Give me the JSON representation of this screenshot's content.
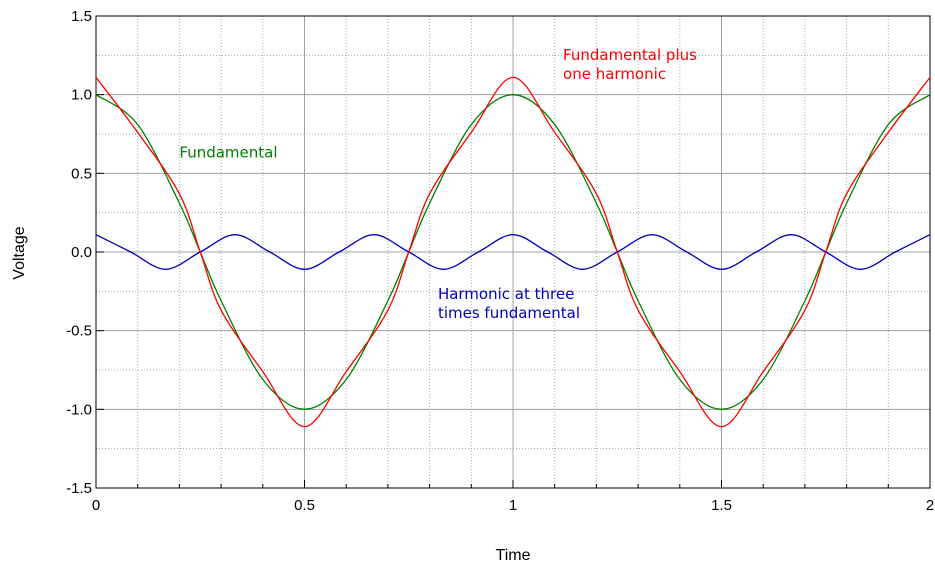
{
  "chart_data": {
    "type": "line",
    "title": "",
    "xlabel": "Time",
    "ylabel": "Voltage",
    "xlim": [
      0,
      2
    ],
    "ylim": [
      -1.5,
      1.5
    ],
    "grid": true,
    "x_ticks": [
      {
        "value": 0,
        "label": "0"
      },
      {
        "value": 0.5,
        "label": "0.5"
      },
      {
        "value": 1,
        "label": "1"
      },
      {
        "value": 1.5,
        "label": "1.5"
      },
      {
        "value": 2,
        "label": "2"
      }
    ],
    "y_ticks": [
      {
        "value": 1.5,
        "label": "1.5"
      },
      {
        "value": 1.0,
        "label": "1.0"
      },
      {
        "value": 0.5,
        "label": "0.5"
      },
      {
        "value": 0.0,
        "label": "0.0"
      },
      {
        "value": -0.5,
        "label": "-0.5"
      },
      {
        "value": -1.0,
        "label": "-1.0"
      },
      {
        "value": -1.5,
        "label": "-1.5"
      }
    ],
    "series": [
      {
        "color": "#008000",
        "x": [
          0,
          0.1,
          0.2,
          0.25,
          0.3,
          0.4,
          0.5,
          0.6,
          0.7,
          0.75,
          0.8,
          0.9,
          1.0,
          1.1,
          1.2,
          1.25,
          1.3,
          1.4,
          1.5,
          1.6,
          1.7,
          1.75,
          1.8,
          1.9,
          2.0
        ],
        "y": [
          1.0,
          0.81,
          0.31,
          0.0,
          -0.31,
          -0.81,
          -1.0,
          -0.81,
          -0.31,
          0.0,
          0.31,
          0.81,
          1.0,
          0.81,
          0.31,
          0.0,
          -0.31,
          -0.81,
          -1.0,
          -0.81,
          -0.31,
          0.0,
          0.31,
          0.81,
          1.0
        ]
      },
      {
        "color": "#0000c0",
        "x": [
          0,
          0.0833,
          0.1667,
          0.25,
          0.3333,
          0.4167,
          0.5,
          0.5833,
          0.6667,
          0.75,
          0.8333,
          0.9167,
          1.0,
          1.0833,
          1.1667,
          1.25,
          1.3333,
          1.4167,
          1.5,
          1.5833,
          1.6667,
          1.75,
          1.8333,
          1.9167,
          2.0
        ],
        "y": [
          0.11,
          0.0,
          -0.11,
          0.0,
          0.11,
          0.0,
          -0.11,
          0.0,
          0.11,
          0.0,
          -0.11,
          0.0,
          0.11,
          0.0,
          -0.11,
          0.0,
          0.11,
          0.0,
          -0.11,
          0.0,
          0.11,
          0.0,
          -0.11,
          0.0,
          0.11
        ]
      },
      {
        "color": "#ff0000",
        "x": [
          0,
          0.1,
          0.2,
          0.25,
          0.3,
          0.4,
          0.5,
          0.6,
          0.7,
          0.75,
          0.8,
          0.9,
          1.0,
          1.1,
          1.2,
          1.25,
          1.3,
          1.4,
          1.5,
          1.6,
          1.7,
          1.75,
          1.8,
          1.9,
          2.0
        ],
        "y": [
          1.11,
          0.76,
          0.37,
          0.0,
          -0.37,
          -0.76,
          -1.11,
          -0.76,
          -0.37,
          0.0,
          0.37,
          0.76,
          1.11,
          0.76,
          0.37,
          0.0,
          -0.37,
          -0.76,
          -1.11,
          -0.76,
          -0.37,
          0.0,
          0.37,
          0.76,
          1.11
        ]
      }
    ],
    "annotations": [
      {
        "lines": [
          "Fundamental plus",
          "one harmonic"
        ],
        "color": "#ff0000",
        "x": 1.12,
        "y": 1.22
      },
      {
        "lines": [
          "Fundamental"
        ],
        "color": "#008000",
        "x": 0.2,
        "y": 0.6
      },
      {
        "lines": [
          "Harmonic at three",
          "times fundamental"
        ],
        "color": "#0000c0",
        "x": 0.82,
        "y": -0.3
      }
    ]
  }
}
